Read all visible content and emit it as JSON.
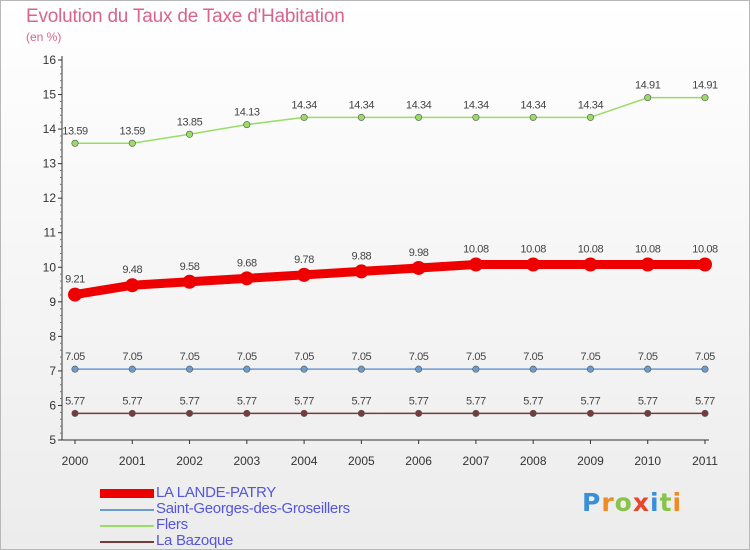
{
  "chart_data": {
    "type": "line",
    "title": "Evolution du Taux de Taxe d'Habitation",
    "subtitle": "(en %)",
    "x": [
      "2000",
      "2001",
      "2002",
      "2003",
      "2004",
      "2005",
      "2006",
      "2007",
      "2008",
      "2009",
      "2010",
      "2011"
    ],
    "ylim": [
      5,
      16
    ],
    "yticks": [
      5,
      6,
      7,
      8,
      9,
      10,
      11,
      12,
      13,
      14,
      15,
      16
    ],
    "grid": false,
    "legend_position": "bottom-left",
    "series": [
      {
        "name": "LA LANDE-PATRY",
        "color": "#ee0000",
        "emphasis": true,
        "values": [
          9.21,
          9.48,
          9.58,
          9.68,
          9.78,
          9.88,
          9.98,
          10.08,
          10.08,
          10.08,
          10.08,
          10.08
        ],
        "labels": [
          "9.21",
          "9.48",
          "9.58",
          "9.68",
          "9.78",
          "9.88",
          "9.98",
          "10.08",
          "10.08",
          "10.08",
          "10.08",
          "10.08"
        ]
      },
      {
        "name": "Saint-Georges-des-Groseillers",
        "color": "#6a9cd0",
        "emphasis": false,
        "values": [
          7.05,
          7.05,
          7.05,
          7.05,
          7.05,
          7.05,
          7.05,
          7.05,
          7.05,
          7.05,
          7.05,
          7.05
        ],
        "labels": [
          "7.05",
          "7.05",
          "7.05",
          "7.05",
          "7.05",
          "7.05",
          "7.05",
          "7.05",
          "7.05",
          "7.05",
          "7.05",
          "7.05"
        ]
      },
      {
        "name": "Flers",
        "color": "#99dd66",
        "emphasis": false,
        "values": [
          13.59,
          13.59,
          13.85,
          14.13,
          14.34,
          14.34,
          14.34,
          14.34,
          14.34,
          14.34,
          14.91,
          14.91
        ],
        "labels": [
          "13.59",
          "13.59",
          "13.85",
          "14.13",
          "14.34",
          "14.34",
          "14.34",
          "14.34",
          "14.34",
          "14.34",
          "14.91",
          "14.91"
        ]
      },
      {
        "name": "La Bazoque",
        "color": "#7a3a3a",
        "emphasis": false,
        "values": [
          5.77,
          5.77,
          5.77,
          5.77,
          5.77,
          5.77,
          5.77,
          5.77,
          5.77,
          5.77,
          5.77,
          5.77
        ],
        "labels": [
          "5.77",
          "5.77",
          "5.77",
          "5.77",
          "5.77",
          "5.77",
          "5.77",
          "5.77",
          "5.77",
          "5.77",
          "5.77",
          "5.77"
        ]
      }
    ]
  },
  "legend_order": [
    0,
    1,
    2,
    3
  ],
  "brand": {
    "letters": [
      "P",
      "r",
      "o",
      "x",
      "i",
      "t",
      "i"
    ],
    "colors": [
      "#3a8fd8",
      "#f08a24",
      "#88c34a",
      "#e8462a",
      "#3a8fd8",
      "#88c34a",
      "#f08a24"
    ]
  }
}
